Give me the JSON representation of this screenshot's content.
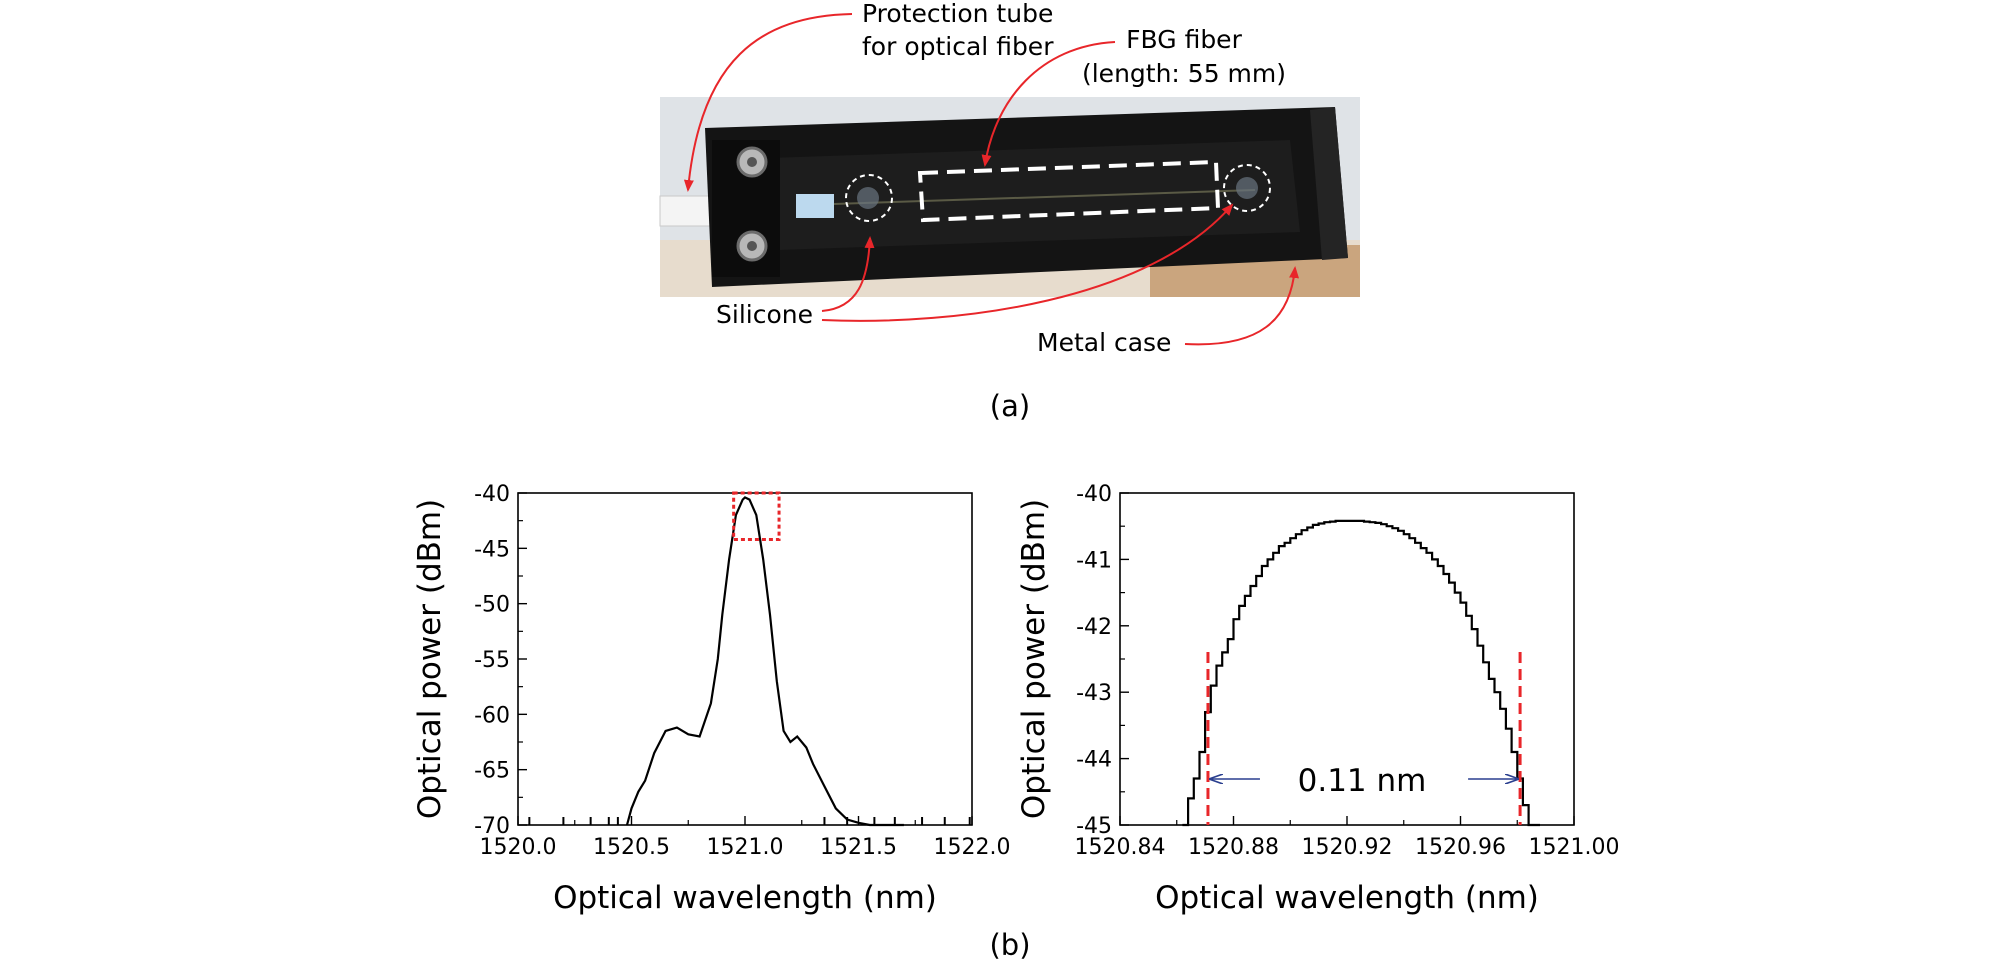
{
  "panel_a": {
    "caption": "(a)",
    "annotations": {
      "protection_tube_line1": "Protection tube",
      "protection_tube_line2": "for optical fiber",
      "fbg_line1": "FBG fiber",
      "fbg_line2": "(length: 55  mm)",
      "silicone": "Silicone",
      "metal_case": "Metal case"
    },
    "colors": {
      "arrow": "#e8262a",
      "case": "#141414",
      "highlight": "#ffffff"
    }
  },
  "panel_b": {
    "caption": "(b)"
  },
  "chart_data": [
    {
      "type": "line",
      "title": "",
      "xlabel": "Optical wavelength (nm)",
      "ylabel": "Optical power (dBm)",
      "xlim": [
        1520.0,
        1522.0
      ],
      "ylim": [
        -70,
        -40
      ],
      "x_ticks": [
        "1520.0",
        "1520.5",
        "1521.0",
        "1521.5",
        "1522.0"
      ],
      "y_ticks": [
        "-40",
        "-45",
        "-50",
        "-55",
        "-60",
        "-65",
        "-70"
      ],
      "grid": false,
      "line_color": "#000000",
      "highlight_box": {
        "x_range": [
          1520.95,
          1521.15
        ],
        "y_range": [
          -44.2,
          -40
        ],
        "color": "#e8262a"
      },
      "series": [
        {
          "x": [
            1520.48,
            1520.5,
            1520.53,
            1520.56,
            1520.6,
            1520.65,
            1520.7,
            1520.75,
            1520.8,
            1520.85,
            1520.88,
            1520.9,
            1520.93,
            1520.96,
            1520.99,
            1521.0,
            1521.02,
            1521.05,
            1521.08,
            1521.11,
            1521.14,
            1521.17,
            1521.2,
            1521.23,
            1521.27,
            1521.3,
            1521.35,
            1521.4,
            1521.45,
            1521.5,
            1521.55,
            1521.6,
            1521.65,
            1521.7
          ],
          "y": [
            -70,
            -68.5,
            -67,
            -66,
            -63.5,
            -61.5,
            -61.2,
            -61.8,
            -62,
            -59,
            -55,
            -51,
            -46,
            -42,
            -40.6,
            -40.4,
            -40.6,
            -42,
            -46,
            -51,
            -57,
            -61.5,
            -62.5,
            -62,
            -63,
            -64.5,
            -66.5,
            -68.5,
            -69.5,
            -69.8,
            -70,
            -70,
            -70,
            -70
          ]
        }
      ]
    },
    {
      "type": "line",
      "title": "",
      "xlabel": "Optical wavelength (nm)",
      "ylabel": "Optical power (dBm)",
      "xlim": [
        1520.84,
        1521.0
      ],
      "ylim": [
        -45,
        -40
      ],
      "x_ticks": [
        "1520.84",
        "1520.88",
        "1520.92",
        "1520.96",
        "1521.00"
      ],
      "y_ticks": [
        "-40",
        "-41",
        "-42",
        "-43",
        "-44",
        "-45"
      ],
      "grid": false,
      "line_color": "#000000",
      "bandwidth_annotation": {
        "label": "0.11 nm",
        "x_left": 1520.871,
        "x_right": 1520.981,
        "marker_color": "#e8262a",
        "arrow_color": "#2a3f8f"
      },
      "series": [
        {
          "x": [
            1520.862,
            1520.864,
            1520.866,
            1520.868,
            1520.87,
            1520.872,
            1520.874,
            1520.876,
            1520.878,
            1520.88,
            1520.882,
            1520.884,
            1520.886,
            1520.888,
            1520.89,
            1520.892,
            1520.894,
            1520.896,
            1520.898,
            1520.9,
            1520.902,
            1520.904,
            1520.906,
            1520.908,
            1520.91,
            1520.912,
            1520.914,
            1520.916,
            1520.918,
            1520.92,
            1520.922,
            1520.924,
            1520.926,
            1520.928,
            1520.93,
            1520.932,
            1520.934,
            1520.936,
            1520.938,
            1520.94,
            1520.942,
            1520.944,
            1520.946,
            1520.948,
            1520.95,
            1520.952,
            1520.954,
            1520.956,
            1520.958,
            1520.96,
            1520.962,
            1520.964,
            1520.966,
            1520.968,
            1520.97,
            1520.972,
            1520.974,
            1520.976,
            1520.978,
            1520.98,
            1520.982,
            1520.984,
            1520.986,
            1520.988
          ],
          "y": [
            -45.0,
            -44.6,
            -44.3,
            -43.9,
            -43.3,
            -42.9,
            -42.6,
            -42.4,
            -42.2,
            -41.9,
            -41.7,
            -41.55,
            -41.4,
            -41.25,
            -41.1,
            -41.0,
            -40.9,
            -40.8,
            -40.75,
            -40.68,
            -40.62,
            -40.56,
            -40.52,
            -40.48,
            -40.46,
            -40.44,
            -40.43,
            -40.42,
            -40.42,
            -40.42,
            -40.42,
            -40.42,
            -40.43,
            -40.44,
            -40.45,
            -40.47,
            -40.5,
            -40.53,
            -40.57,
            -40.62,
            -40.68,
            -40.75,
            -40.83,
            -40.9,
            -41.0,
            -41.1,
            -41.22,
            -41.35,
            -41.5,
            -41.65,
            -41.85,
            -42.05,
            -42.3,
            -42.55,
            -42.8,
            -43.0,
            -43.25,
            -43.55,
            -43.9,
            -44.3,
            -44.7,
            -45.0,
            -45.0,
            -45.0
          ]
        }
      ]
    }
  ]
}
